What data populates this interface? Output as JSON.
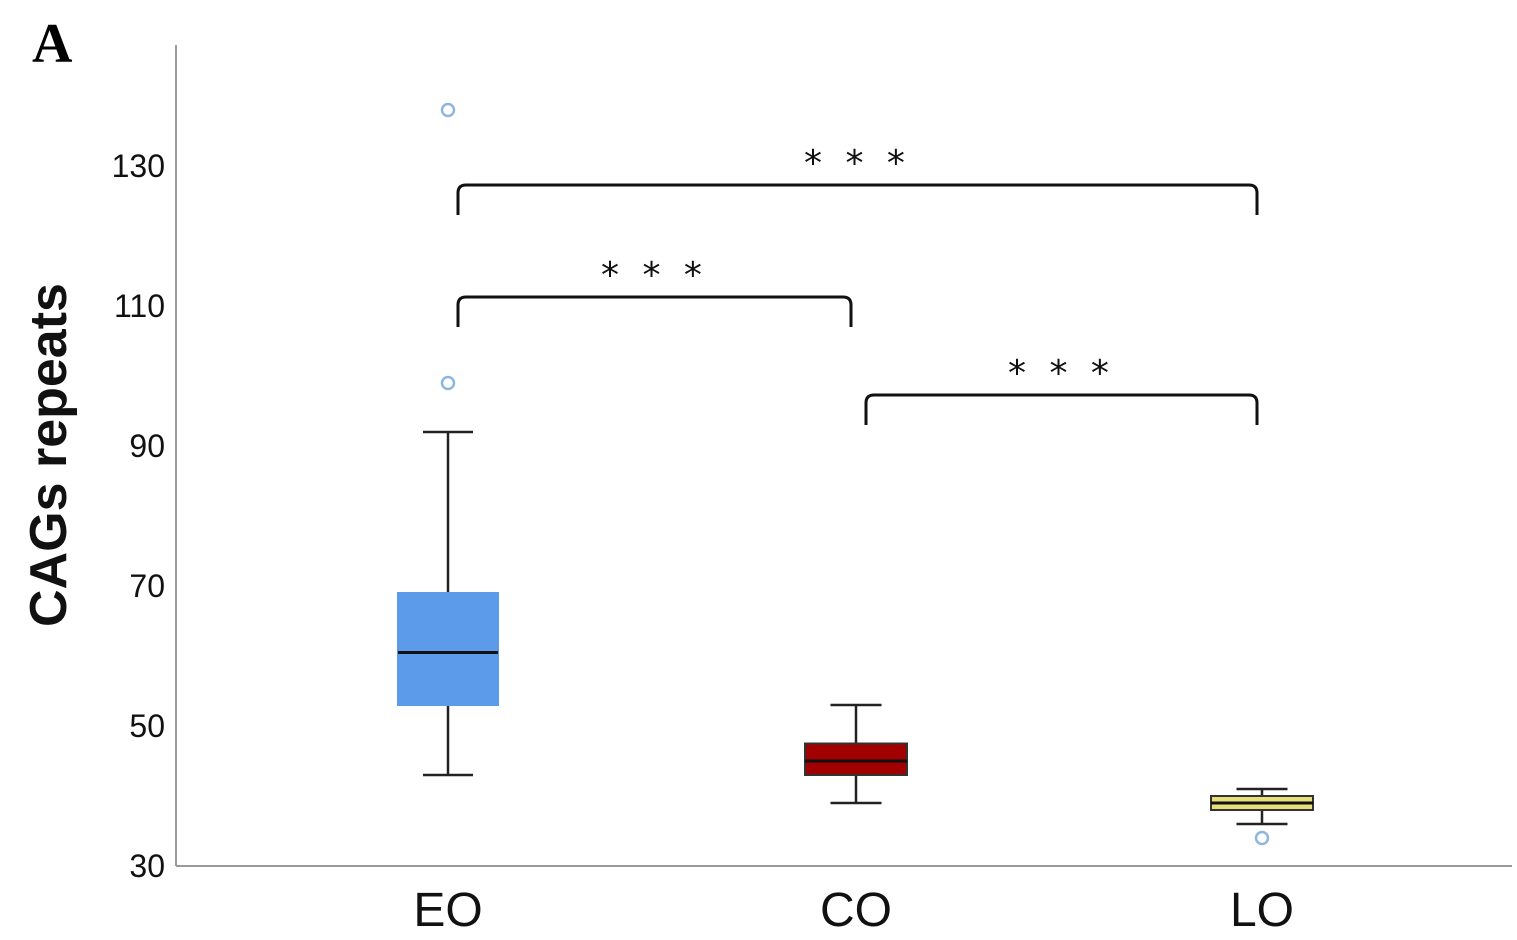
{
  "panel_label": "A",
  "chart_data": {
    "type": "box",
    "title": "",
    "ylabel": "CAGs repeats",
    "xlabel": "",
    "ylim": [
      30,
      145
    ],
    "yticks": [
      30,
      50,
      70,
      90,
      110,
      130
    ],
    "grid": false,
    "categories": [
      "EO",
      "CO",
      "LO"
    ],
    "boxes": [
      {
        "category": "EO",
        "color": "#5b9bea",
        "whisker_low": 43,
        "q1": 53,
        "median": 60.5,
        "q3": 69,
        "whisker_high": 92,
        "outliers": [
          99,
          138
        ]
      },
      {
        "category": "CO",
        "color": "#a00000",
        "whisker_low": 39,
        "q1": 43,
        "median": 45,
        "q3": 47.5,
        "whisker_high": 53,
        "outliers": []
      },
      {
        "category": "LO",
        "color": "#e6e07a",
        "whisker_low": 36,
        "q1": 38,
        "median": 39,
        "q3": 40,
        "whisker_high": 41,
        "outliers": [
          34
        ]
      }
    ],
    "significance": [
      {
        "from": "EO",
        "to": "LO",
        "label": "* * *",
        "level": 124
      },
      {
        "from": "EO",
        "to": "CO",
        "label": "* * *",
        "level": 108
      },
      {
        "from": "CO",
        "to": "LO",
        "label": "* * *",
        "level": 94
      }
    ]
  }
}
